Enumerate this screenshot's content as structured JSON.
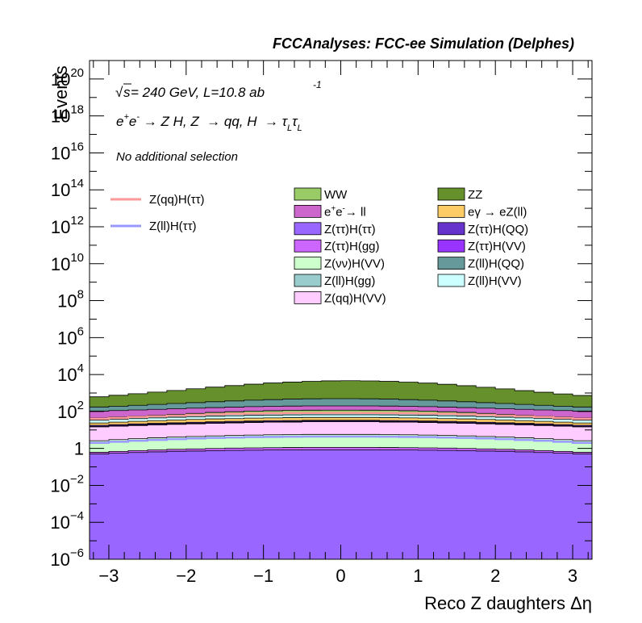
{
  "header": {
    "title": "FCCAnalyses: FCC-ee Simulation (Delphes)"
  },
  "annotations": {
    "energy_pre": "√",
    "energy_s": "s",
    "energy_rest": " = 240 GeV, L=10.8 ab",
    "energy_exp": "-1",
    "process": "e⁺e⁻ → Z H, Z → qq, H → τ_L τ_L",
    "process_parts": {
      "a": "e",
      "a_sup": "+",
      "b": "e",
      "b_sup": "-",
      "c": " → Z H, Z  → qq, H  → τ",
      "c_sub": "L",
      "d": "τ",
      "d_sub": "L"
    },
    "selection": "No additional selection"
  },
  "chart_data": {
    "type": "area",
    "title": "FCCAnalyses: FCC-ee Simulation (Delphes)",
    "xlabel": "Reco Z daughters Δη",
    "ylabel": "Events",
    "xlim": [
      -3.25,
      3.25
    ],
    "ylim": [
      1e-06,
      1e+21
    ],
    "yscale": "log",
    "grid": false,
    "x_ticks": [
      -3,
      -2,
      -1,
      0,
      1,
      2,
      3
    ],
    "x_tick_labels": [
      "−3",
      "−2",
      "−1",
      "0",
      "1",
      "2",
      "3"
    ],
    "y_ticks": [
      {
        "value": 1e-06,
        "base": "10",
        "exp": "−6"
      },
      {
        "value": 0.0001,
        "base": "10",
        "exp": "−4"
      },
      {
        "value": 0.01,
        "base": "10",
        "exp": "−2"
      },
      {
        "value": 1,
        "base": "1",
        "exp": ""
      },
      {
        "value": 100.0,
        "base": "10",
        "exp": "2"
      },
      {
        "value": 10000.0,
        "base": "10",
        "exp": "4"
      },
      {
        "value": 1000000.0,
        "base": "10",
        "exp": "6"
      },
      {
        "value": 100000000.0,
        "base": "10",
        "exp": "8"
      },
      {
        "value": 10000000000.0,
        "base": "10",
        "exp": "10"
      },
      {
        "value": 1000000000000.0,
        "base": "10",
        "exp": "12"
      },
      {
        "value": 100000000000000.0,
        "base": "10",
        "exp": "14"
      },
      {
        "value": 1e+16,
        "base": "10",
        "exp": "16"
      },
      {
        "value": 1e+18,
        "base": "10",
        "exp": "18"
      },
      {
        "value": 1e+20,
        "base": "10",
        "exp": "20"
      }
    ],
    "bin_edges": [
      -3.25,
      -3.0,
      -2.75,
      -2.5,
      -2.25,
      -2.0,
      -1.75,
      -1.5,
      -1.25,
      -1.0,
      -0.75,
      -0.5,
      -0.25,
      0.0,
      0.25,
      0.5,
      0.75,
      1.0,
      1.25,
      1.5,
      1.75,
      2.0,
      2.25,
      2.5,
      2.75,
      3.0,
      3.25
    ],
    "legend_position": "top-right",
    "stack_order_bottom_to_top": [
      "Z(ττ)H(ττ)",
      "Z(ττ)H(gg)",
      "Z(νν)H(VV)",
      "Z(qq)H(VV)",
      "Z(ττ)H(VV)",
      "Z(ττ)H(QQ)",
      "eγ → eZ(ll)",
      "Z(ll)H(VV)",
      "Z(ll)H(gg)",
      "WW",
      "e⁺e⁻→ ll",
      "Z(ll)H(QQ)",
      "ZZ"
    ],
    "stack_series": [
      {
        "name": "WW",
        "color": "#99cc66",
        "legend_html": "WW",
        "values": [
          3,
          4,
          5,
          7,
          10,
          14,
          19,
          24,
          28,
          31,
          33,
          34,
          35,
          35,
          34,
          33,
          31,
          28,
          24,
          19,
          14,
          10,
          7,
          5,
          4,
          3
        ]
      },
      {
        "name": "ZZ",
        "color": "#66902c",
        "legend_html": "ZZ",
        "values": [
          450,
          560,
          700,
          880,
          1100,
          1400,
          1750,
          2150,
          2600,
          3050,
          3450,
          3800,
          4050,
          4150,
          4050,
          3800,
          3450,
          3050,
          2600,
          2150,
          1750,
          1400,
          1100,
          880,
          700,
          560
        ]
      },
      {
        "name": "e⁺e⁻→ ll",
        "color": "#cc66cc",
        "legend_html": "e<sup>+</sup>e<sup>-</sup>→ ll",
        "values": [
          60,
          62,
          65,
          68,
          70,
          72,
          74,
          76,
          78,
          80,
          81,
          82,
          82,
          82,
          82,
          81,
          80,
          78,
          76,
          74,
          72,
          70,
          68,
          65,
          62,
          60
        ]
      },
      {
        "name": "eγ → eZ(ll)",
        "color": "#fecc66",
        "legend_html": "eγ → eZ(ll)",
        "values": [
          6,
          7,
          8,
          9,
          10,
          11,
          12,
          12,
          13,
          13,
          14,
          14,
          14,
          14,
          14,
          14,
          13,
          13,
          12,
          12,
          11,
          10,
          9,
          8,
          7,
          6
        ]
      },
      {
        "name": "Z(ττ)H(ττ)",
        "color": "#9966ff",
        "legend_html": "Z(ττ)H(ττ)",
        "values": [
          0.5,
          0.55,
          0.6,
          0.65,
          0.7,
          0.72,
          0.75,
          0.78,
          0.8,
          0.82,
          0.83,
          0.84,
          0.84,
          0.84,
          0.84,
          0.83,
          0.82,
          0.8,
          0.78,
          0.75,
          0.72,
          0.7,
          0.65,
          0.6,
          0.55,
          0.5
        ]
      },
      {
        "name": "Z(ττ)H(QQ)",
        "color": "#6633cc",
        "legend_html": "Z(ττ)H(QQ)",
        "values": [
          2,
          2.2,
          2.4,
          2.6,
          2.8,
          3,
          3.1,
          3.2,
          3.3,
          3.4,
          3.5,
          3.5,
          3.5,
          3.5,
          3.5,
          3.5,
          3.4,
          3.3,
          3.2,
          3.1,
          3,
          2.8,
          2.6,
          2.4,
          2.2,
          2
        ]
      },
      {
        "name": "Z(ττ)H(gg)",
        "color": "#cc66ff",
        "legend_html": "Z(ττ)H(gg)",
        "values": [
          0.12,
          0.14,
          0.16,
          0.18,
          0.2,
          0.22,
          0.24,
          0.26,
          0.27,
          0.28,
          0.29,
          0.3,
          0.3,
          0.3,
          0.3,
          0.29,
          0.28,
          0.27,
          0.26,
          0.24,
          0.22,
          0.2,
          0.18,
          0.16,
          0.14,
          0.12
        ]
      },
      {
        "name": "Z(ττ)H(VV)",
        "color": "#9933ff",
        "legend_html": "Z(ττ)H(VV)",
        "values": [
          1.2,
          1.3,
          1.4,
          1.5,
          1.6,
          1.7,
          1.8,
          1.9,
          2,
          2,
          2.1,
          2.1,
          2.1,
          2.1,
          2.1,
          2.1,
          2,
          2,
          1.9,
          1.8,
          1.7,
          1.6,
          1.5,
          1.4,
          1.3,
          1.2
        ]
      },
      {
        "name": "Z(νν)H(VV)",
        "color": "#ccffcc",
        "legend_html": "Z(νν)H(VV)",
        "values": [
          2,
          2.3,
          2.6,
          2.9,
          3.2,
          3.5,
          3.8,
          4,
          4.2,
          4.4,
          4.5,
          4.6,
          4.6,
          4.6,
          4.6,
          4.5,
          4.4,
          4.2,
          4,
          3.8,
          3.5,
          3.2,
          2.9,
          2.6,
          2.3,
          2
        ]
      },
      {
        "name": "Z(ll)H(QQ)",
        "color": "#669999",
        "legend_html": "Z(ll)H(QQ)",
        "values": [
          70,
          80,
          95,
          110,
          130,
          150,
          175,
          200,
          225,
          250,
          270,
          285,
          295,
          295,
          285,
          270,
          250,
          225,
          200,
          175,
          150,
          130,
          110,
          95,
          80,
          70
        ]
      },
      {
        "name": "Z(ll)H(gg)",
        "color": "#99cccc",
        "legend_html": "Z(ll)H(gg)",
        "values": [
          8,
          9,
          10,
          11,
          12,
          13,
          14,
          15,
          16,
          16,
          17,
          17,
          17,
          17,
          17,
          17,
          16,
          16,
          15,
          14,
          13,
          12,
          11,
          10,
          9,
          8
        ]
      },
      {
        "name": "Z(ll)H(VV)",
        "color": "#ccffff",
        "legend_html": "Z(ll)H(VV)",
        "values": [
          10,
          11,
          12,
          13,
          14,
          15,
          16,
          17,
          18,
          18,
          19,
          19,
          19,
          19,
          19,
          19,
          18,
          18,
          17,
          16,
          15,
          14,
          13,
          12,
          11,
          10
        ]
      },
      {
        "name": "Z(qq)H(VV)",
        "color": "#ffccff",
        "legend_html": "Z(qq)H(VV)",
        "values": [
          12,
          13,
          14,
          15,
          16,
          17,
          18,
          19,
          20,
          21,
          21,
          22,
          22,
          22,
          22,
          21,
          21,
          20,
          19,
          18,
          17,
          16,
          15,
          14,
          13,
          12
        ]
      }
    ],
    "signal_series": [
      {
        "name": "Z(qq)H(ττ)",
        "color": "#ff9999",
        "legend_html": "Z(qq)H(ττ)",
        "values": [
          40,
          45,
          50,
          55,
          60,
          65,
          70,
          75,
          78,
          80,
          82,
          83,
          84,
          84,
          83,
          82,
          80,
          78,
          75,
          70,
          65,
          60,
          55,
          50,
          45,
          40
        ]
      },
      {
        "name": "Z(ll)H(ττ)",
        "color": "#9999ff",
        "legend_html": "Z(ll)H(ττ)",
        "values": [
          2,
          2.3,
          2.6,
          2.9,
          3.2,
          3.5,
          3.7,
          3.9,
          4.1,
          4.2,
          4.3,
          4.4,
          4.4,
          4.4,
          4.4,
          4.3,
          4.2,
          4.1,
          3.9,
          3.7,
          3.5,
          3.2,
          2.9,
          2.6,
          2.3,
          2
        ]
      }
    ]
  }
}
